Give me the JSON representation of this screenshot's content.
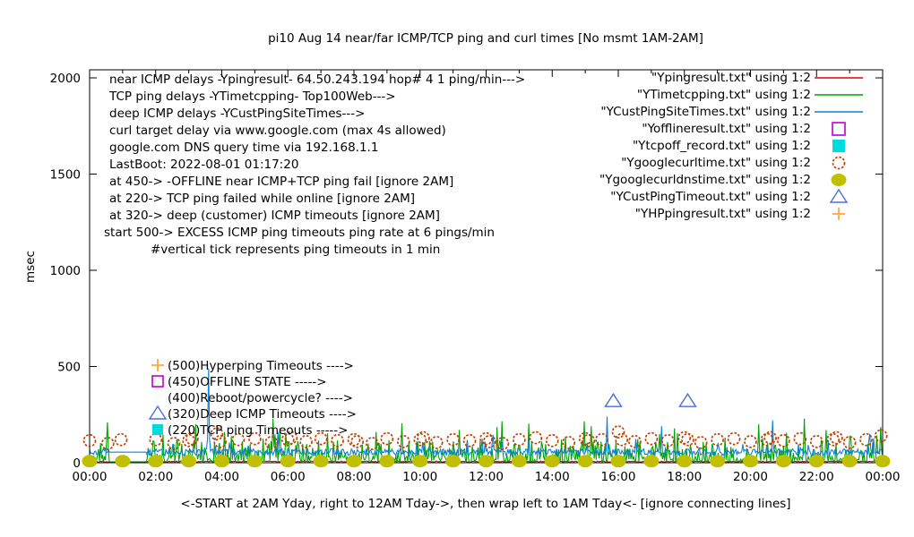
{
  "chart_data": {
    "type": "line",
    "title": "pi10 Aug 14  near/far ICMP/TCP ping and curl times [No msmt 1AM-2AM]",
    "ylabel": "msec",
    "xlabel": "<-START at 2AM Yday, right to 12AM Tday->, then wrap left to 1AM Tday<- [ignore connecting lines]",
    "ylim": [
      0,
      2000
    ],
    "yticks": [
      0,
      500,
      1000,
      1500,
      2000
    ],
    "xticks": [
      "00:00",
      "02:00",
      "04:00",
      "06:00",
      "08:00",
      "10:00",
      "12:00",
      "14:00",
      "16:00",
      "18:00",
      "20:00",
      "22:00",
      "00:00"
    ],
    "x_hours_span": 24,
    "grid": false,
    "no_measurement_gap_hours": [
      0.58,
      1.72
    ],
    "info_lines": [
      "near ICMP delays -Ypingresult- 64.50.243.194 hop# 4 1 ping/min--->",
      "TCP ping delays -YTimetcpping- Top100Web--->",
      "deep ICMP delays -YCustPingSiteTimes--->",
      "curl target delay via www.google.com (max 4s allowed)",
      "google.com DNS query time via 192.168.1.1",
      "LastBoot: 2022-08-01 01:17:20",
      "at 450-> -OFFLINE near ICMP+TCP ping fail [ignore 2AM]",
      "at 220-> TCP ping failed while online [ignore 2AM]",
      "at 320-> deep (customer) ICMP timeouts [ignore 2AM]",
      "start 500-> EXCESS ICMP ping timeouts ping rate at 6 pings/min",
      "#vertical tick represents ping timeouts in 1 min"
    ],
    "legend": {
      "position": "top-right",
      "entries": [
        {
          "label": "\"Ypingresult.txt\" using 1:2",
          "sample": "line",
          "color": "#e60000"
        },
        {
          "label": "\"YTimetcpping.txt\" using 1:2",
          "sample": "line",
          "color": "#00a400"
        },
        {
          "label": "\"YCustPingSiteTimes.txt\" using 1:2",
          "sample": "line",
          "color": "#0a80e0"
        },
        {
          "label": "\"Yofflineresult.txt\" using 1:2",
          "sample": "square-open",
          "color": "#bb00cc"
        },
        {
          "label": "\"Ytcpoff_record.txt\" using 1:2",
          "sample": "square-filled",
          "color": "#00dcdc"
        },
        {
          "label": "\"Ygooglecurltime.txt\" using 1:2",
          "sample": "circle-open",
          "color": "#c04000"
        },
        {
          "label": "\"Ygooglecurldnstime.txt\" using 1:2",
          "sample": "circle-filled",
          "color": "#c0c000"
        },
        {
          "label": "\"YCustPingTimeout.txt\" using 1:2",
          "sample": "triangle-open",
          "color": "#4a6ee0"
        },
        {
          "label": "\"YHPpingresult.txt\" using 1:2",
          "sample": "plus",
          "color": "#ffa940"
        }
      ]
    },
    "annotations": [
      {
        "marker": "plus-icon",
        "color": "#ffa940",
        "label": "(500)Hyperping Timeouts ---->",
        "at_ms": 500
      },
      {
        "marker": "square-open-icon",
        "color": "#bb00cc",
        "label": "(450)OFFLINE STATE ----->",
        "at_ms": 450
      },
      {
        "marker": null,
        "color": null,
        "label": "(400)Reboot/powercycle? ---->",
        "at_ms": 400
      },
      {
        "marker": "triangle-open-icon",
        "color": "#4a6ee0",
        "label": "(320)Deep ICMP Timeouts ---->",
        "at_ms": 320
      },
      {
        "marker": "square-filled-icon",
        "color": "#00dcdc",
        "label": "(220)TCP ping Timeouts ----->",
        "at_ms": 220
      }
    ],
    "series": [
      {
        "name": "Ypingresult",
        "file": "Ypingresult.txt",
        "style": "line",
        "color": "#e60000",
        "baseline_ms": 5,
        "noise_ms": 6,
        "gap_value_ms": 4,
        "spikes": []
      },
      {
        "name": "YTimetcpping",
        "file": "YTimetcpping.txt",
        "style": "line",
        "color": "#00a400",
        "baseline_ms": 15,
        "noise_ms": 110,
        "gap_value_ms": 2,
        "spikes": [
          [
            0.54,
            210
          ],
          [
            3.2,
            200
          ],
          [
            4.07,
            160
          ],
          [
            5.56,
            230
          ],
          [
            5.75,
            180
          ],
          [
            8.68,
            160
          ],
          [
            9.44,
            205
          ],
          [
            11.2,
            170
          ],
          [
            12.47,
            215
          ],
          [
            14.97,
            215
          ],
          [
            15.19,
            190
          ],
          [
            17.25,
            150
          ],
          [
            20.26,
            200
          ],
          [
            21.1,
            155
          ],
          [
            21.64,
            230
          ],
          [
            22.29,
            170
          ],
          [
            23.0,
            140
          ],
          [
            23.95,
            185
          ]
        ]
      },
      {
        "name": "YCustPingSiteTimes",
        "file": "YCustPingSiteTimes.txt",
        "style": "line",
        "color": "#0a80e0",
        "baseline_ms": 55,
        "noise_ms": 35,
        "gap_value_ms": 55,
        "spikes": [
          [
            3.61,
            490
          ],
          [
            5.69,
            160
          ],
          [
            12.2,
            145
          ],
          [
            15.65,
            240
          ],
          [
            17.3,
            190
          ],
          [
            20.66,
            220
          ],
          [
            23.6,
            150
          ]
        ]
      },
      {
        "name": "Yofflineresult",
        "file": "Yofflineresult.txt",
        "style": "points",
        "marker": "square-open",
        "color": "#bb00cc",
        "points": []
      },
      {
        "name": "Ytcpoff_record",
        "file": "Ytcpoff_record.txt",
        "style": "points",
        "marker": "square-filled",
        "color": "#00dcdc",
        "points": []
      },
      {
        "name": "Ygooglecurltime",
        "file": "Ygooglecurltime.txt",
        "style": "points",
        "marker": "circle-open",
        "color": "#c04000",
        "points": [
          [
            0.0,
            115
          ],
          [
            0.55,
            100
          ],
          [
            0.95,
            120
          ],
          [
            2.0,
            120
          ],
          [
            2.55,
            100
          ],
          [
            3.0,
            115
          ],
          [
            3.1,
            125
          ],
          [
            3.85,
            150
          ],
          [
            3.95,
            110
          ],
          [
            4.5,
            120
          ],
          [
            5.0,
            125
          ],
          [
            5.5,
            105
          ],
          [
            6.0,
            120
          ],
          [
            6.1,
            130
          ],
          [
            6.55,
            110
          ],
          [
            7.0,
            125
          ],
          [
            7.5,
            115
          ],
          [
            8.0,
            120
          ],
          [
            8.1,
            110
          ],
          [
            8.55,
            100
          ],
          [
            9.0,
            125
          ],
          [
            9.5,
            110
          ],
          [
            10.0,
            120
          ],
          [
            10.1,
            130
          ],
          [
            10.5,
            105
          ],
          [
            11.0,
            120
          ],
          [
            11.5,
            115
          ],
          [
            12.0,
            125
          ],
          [
            12.1,
            110
          ],
          [
            12.5,
            100
          ],
          [
            13.0,
            120
          ],
          [
            13.5,
            130
          ],
          [
            14.0,
            115
          ],
          [
            14.5,
            105
          ],
          [
            15.0,
            125
          ],
          [
            15.1,
            115
          ],
          [
            15.5,
            120
          ],
          [
            16.0,
            160
          ],
          [
            16.1,
            120
          ],
          [
            16.5,
            110
          ],
          [
            17.0,
            125
          ],
          [
            17.5,
            115
          ],
          [
            18.0,
            130
          ],
          [
            18.1,
            120
          ],
          [
            18.5,
            105
          ],
          [
            19.0,
            120
          ],
          [
            19.5,
            125
          ],
          [
            20.0,
            110
          ],
          [
            20.5,
            120
          ],
          [
            20.6,
            130
          ],
          [
            21.0,
            115
          ],
          [
            21.5,
            125
          ],
          [
            22.0,
            110
          ],
          [
            22.5,
            120
          ],
          [
            22.6,
            130
          ],
          [
            23.0,
            105
          ],
          [
            23.5,
            120
          ],
          [
            23.95,
            140
          ]
        ]
      },
      {
        "name": "Ygooglecurldnstime",
        "file": "Ygooglecurldnstime.txt",
        "style": "points",
        "marker": "circle-filled",
        "color": "#c0c000",
        "points": [
          [
            0,
            8
          ],
          [
            1,
            8
          ],
          [
            2,
            8
          ],
          [
            3,
            8
          ],
          [
            4,
            8
          ],
          [
            5,
            8
          ],
          [
            6,
            8
          ],
          [
            7,
            8
          ],
          [
            8,
            8
          ],
          [
            9,
            8
          ],
          [
            10,
            8
          ],
          [
            11,
            8
          ],
          [
            12,
            8
          ],
          [
            13,
            8
          ],
          [
            14,
            8
          ],
          [
            15,
            8
          ],
          [
            16,
            8
          ],
          [
            17,
            8
          ],
          [
            18,
            8
          ],
          [
            19,
            8
          ],
          [
            20,
            8
          ],
          [
            21,
            8
          ],
          [
            22,
            8
          ],
          [
            23,
            8
          ],
          [
            24,
            8
          ]
        ]
      },
      {
        "name": "YCustPingTimeout",
        "file": "YCustPingTimeout.txt",
        "style": "points",
        "marker": "triangle-open",
        "color": "#4a6ee0",
        "points": [
          [
            15.85,
            320
          ],
          [
            18.1,
            320
          ]
        ]
      },
      {
        "name": "YHPpingresult",
        "file": "YHPpingresult.txt",
        "style": "points",
        "marker": "plus",
        "color": "#ffa940",
        "points": []
      }
    ]
  }
}
